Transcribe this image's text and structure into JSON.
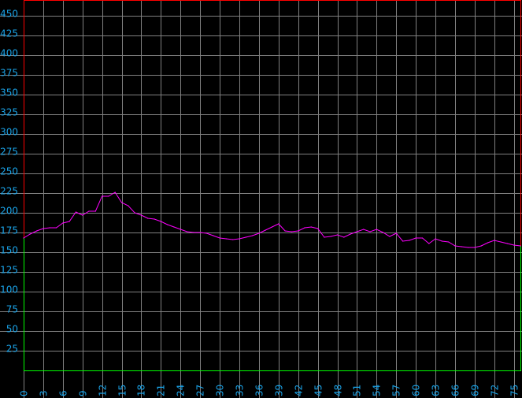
{
  "chart_data": {
    "type": "line",
    "title": "",
    "xlabel": "",
    "ylabel": "",
    "xlim": [
      0,
      76
    ],
    "ylim": [
      0,
      470
    ],
    "grid": true,
    "x_ticks": [
      0,
      3,
      6,
      9,
      12,
      15,
      18,
      21,
      24,
      27,
      30,
      33,
      36,
      39,
      42,
      45,
      48,
      51,
      54,
      57,
      60,
      63,
      66,
      69,
      72,
      75
    ],
    "y_ticks": [
      25,
      50,
      75,
      100,
      125,
      150,
      175,
      200,
      225,
      250,
      275,
      300,
      325,
      350,
      375,
      400,
      425,
      450
    ],
    "colors": {
      "line": "#ff00ff",
      "grid": "#808080",
      "tick_labels": "#1aa3e8",
      "border_above": "#ff0000",
      "border_below": "#00ff00",
      "background": "#000000"
    },
    "series": [
      {
        "x": [
          0,
          1,
          2,
          3,
          4,
          5,
          6,
          7,
          8,
          9,
          10,
          11,
          12,
          13,
          14,
          15,
          16,
          17,
          18,
          19,
          20,
          21,
          22,
          23,
          24,
          25,
          26,
          27,
          28,
          29,
          30,
          31,
          32,
          33,
          34,
          35,
          36,
          37,
          38,
          39,
          40,
          41,
          42,
          43,
          44,
          45,
          46,
          47,
          48,
          49,
          50,
          51,
          52,
          53,
          54,
          55,
          56,
          57,
          58,
          59,
          60,
          61,
          62,
          63,
          64,
          65,
          66,
          67,
          68,
          69,
          70,
          71,
          72,
          73,
          74,
          75,
          76
        ],
        "y": [
          168,
          173,
          177,
          180,
          181,
          181,
          187,
          189,
          201,
          197,
          202,
          202,
          221,
          221,
          226,
          213,
          209,
          200,
          197,
          193,
          192,
          189,
          185,
          182,
          179,
          176,
          175,
          175,
          174,
          171,
          168,
          167,
          166,
          167,
          169,
          171,
          174,
          178,
          182,
          186,
          177,
          176,
          177,
          181,
          182,
          180,
          169,
          170,
          172,
          169,
          173,
          176,
          179,
          176,
          179,
          175,
          170,
          174,
          164,
          165,
          168,
          168,
          161,
          167,
          164,
          163,
          158,
          157,
          156,
          156,
          158,
          162,
          165,
          163,
          161,
          159,
          158
        ]
      }
    ]
  }
}
